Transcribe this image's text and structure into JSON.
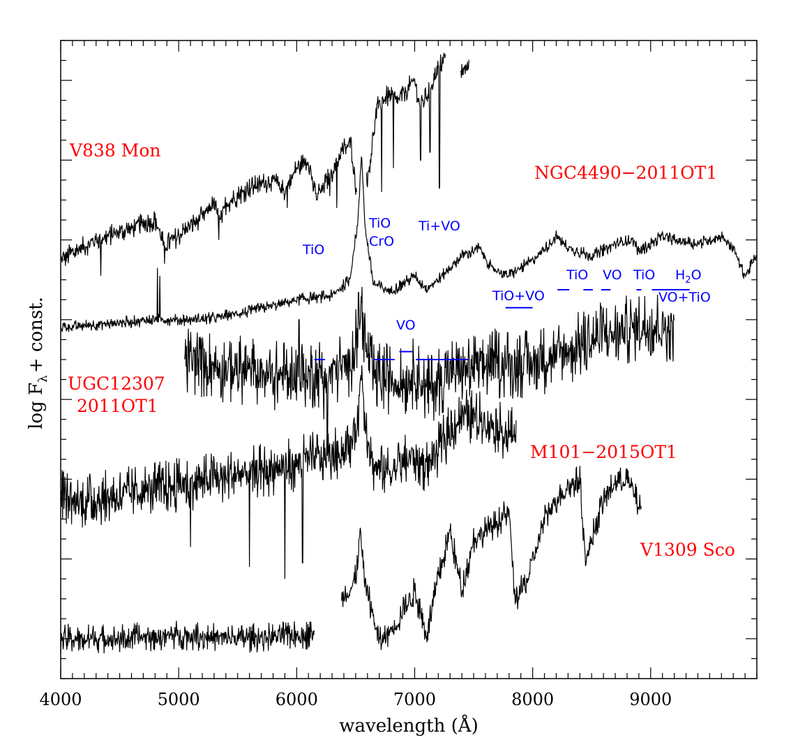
{
  "chart_data": {
    "type": "line",
    "xlabel": "wavelength (Å)",
    "ylabel": {
      "main": "log F",
      "sub": "λ",
      "rest": "+ const."
    },
    "xlim": [
      4000,
      9900
    ],
    "ylim": [
      0,
      16
    ],
    "x_ticks": [
      4000,
      5000,
      6000,
      7000,
      8000,
      9000
    ],
    "x_tick_labels": [
      "4000",
      "5000",
      "6000",
      "7000",
      "8000",
      "9000"
    ],
    "y_ticks_major": [
      1,
      3,
      5,
      7,
      9,
      11,
      13,
      15
    ],
    "grid": false,
    "colors": {
      "spectrum": "#000000",
      "object_label": "#ff0000",
      "band": "#0000ff"
    },
    "series": [
      {
        "name": "V838 Mon",
        "noise": 0.28,
        "points": [
          [
            4000,
            10.5
          ],
          [
            4300,
            11.0
          ],
          [
            4600,
            11.3
          ],
          [
            4800,
            11.5
          ],
          [
            4840,
            11.2
          ],
          [
            4880,
            10.8
          ],
          [
            4900,
            10.9
          ],
          [
            5000,
            11.1
          ],
          [
            5200,
            11.6
          ],
          [
            5300,
            11.9
          ],
          [
            5350,
            11.4
          ],
          [
            5400,
            11.9
          ],
          [
            5600,
            12.3
          ],
          [
            5800,
            12.5
          ],
          [
            5900,
            12.2
          ],
          [
            6000,
            12.8
          ],
          [
            6100,
            13.0
          ],
          [
            6150,
            12.2
          ],
          [
            6200,
            12.2
          ],
          [
            6300,
            12.7
          ],
          [
            6400,
            13.3
          ],
          [
            6460,
            13.4
          ],
          [
            6520,
            11.8
          ],
          [
            6560,
            14.0
          ],
          [
            6600,
            12.5
          ],
          [
            6680,
            14.3
          ],
          [
            6760,
            14.6
          ],
          [
            6860,
            14.5
          ],
          [
            6940,
            14.8
          ],
          [
            7000,
            15.0
          ],
          [
            7050,
            14.3
          ],
          [
            7100,
            14.6
          ],
          [
            7200,
            15.3
          ],
          [
            7260,
            15.6
          ],
          [
            7320,
            15.9
          ],
          [
            7380,
            15.1
          ],
          [
            7400,
            15.2
          ],
          [
            7460,
            15.4
          ]
        ],
        "gaps": [
          [
            6510,
            6590
          ],
          [
            7260,
            7390
          ]
        ],
        "drops": [
          [
            4340,
            10.1
          ],
          [
            4880,
            10.4
          ],
          [
            5340,
            11.0
          ],
          [
            5920,
            11.8
          ],
          [
            6170,
            12.0
          ],
          [
            6280,
            12.1
          ],
          [
            6340,
            11.8
          ],
          [
            6720,
            12.2
          ],
          [
            6820,
            12.8
          ],
          [
            7050,
            13.0
          ],
          [
            7130,
            13.2
          ],
          [
            7210,
            12.3
          ]
        ]
      },
      {
        "name": "NGC4490-2011OT1",
        "noise": 0.16,
        "points": [
          [
            4000,
            8.8
          ],
          [
            4400,
            8.9
          ],
          [
            4800,
            9.0
          ],
          [
            5200,
            9.0
          ],
          [
            5600,
            9.2
          ],
          [
            6000,
            9.5
          ],
          [
            6300,
            9.6
          ],
          [
            6450,
            10.0
          ],
          [
            6520,
            11.5
          ],
          [
            6550,
            13.2
          ],
          [
            6580,
            11.3
          ],
          [
            6650,
            9.9
          ],
          [
            6800,
            9.7
          ],
          [
            6900,
            9.9
          ],
          [
            7000,
            10.1
          ],
          [
            7050,
            9.9
          ],
          [
            7100,
            9.8
          ],
          [
            7200,
            10.0
          ],
          [
            7400,
            10.6
          ],
          [
            7550,
            10.8
          ],
          [
            7650,
            10.3
          ],
          [
            7800,
            10.1
          ],
          [
            8000,
            10.5
          ],
          [
            8150,
            10.9
          ],
          [
            8200,
            11.1
          ],
          [
            8300,
            10.8
          ],
          [
            8400,
            10.7
          ],
          [
            8500,
            10.6
          ],
          [
            8700,
            10.9
          ],
          [
            8850,
            11.0
          ],
          [
            8900,
            10.7
          ],
          [
            9000,
            10.9
          ],
          [
            9100,
            11.1
          ],
          [
            9200,
            11.0
          ],
          [
            9400,
            10.9
          ],
          [
            9600,
            11.1
          ],
          [
            9700,
            10.8
          ],
          [
            9800,
            10.1
          ],
          [
            9900,
            10.6
          ]
        ],
        "drops": [
          [
            4820,
            10.3
          ],
          [
            4840,
            10.1
          ]
        ]
      },
      {
        "name": "UGC12307 2011OT1",
        "noise": 0.9,
        "points": [
          [
            5050,
            8.0
          ],
          [
            5400,
            7.8
          ],
          [
            5800,
            7.6
          ],
          [
            6000,
            7.6
          ],
          [
            6300,
            7.7
          ],
          [
            6450,
            7.9
          ],
          [
            6510,
            8.6
          ],
          [
            6550,
            9.3
          ],
          [
            6590,
            8.2
          ],
          [
            6650,
            7.6
          ],
          [
            6800,
            7.5
          ],
          [
            6900,
            7.4
          ],
          [
            7000,
            7.7
          ],
          [
            7100,
            7.2
          ],
          [
            7300,
            7.7
          ],
          [
            7500,
            7.8
          ],
          [
            7700,
            7.9
          ],
          [
            8000,
            7.9
          ],
          [
            8300,
            8.2
          ],
          [
            8600,
            8.6
          ],
          [
            9000,
            8.9
          ],
          [
            9200,
            8.8
          ]
        ],
        "clip": [
          5050,
          9200
        ],
        "drops": [
          [
            6020,
            9.0
          ],
          [
            6230,
            6.5
          ],
          [
            6260,
            5.8
          ]
        ]
      },
      {
        "name": "M101-2015OT1",
        "noise": 0.7,
        "points": [
          [
            4000,
            4.7
          ],
          [
            4100,
            4.4
          ],
          [
            4300,
            4.5
          ],
          [
            4500,
            4.6
          ],
          [
            4700,
            4.7
          ],
          [
            4900,
            4.8
          ],
          [
            5100,
            4.9
          ],
          [
            5300,
            5.0
          ],
          [
            5500,
            5.1
          ],
          [
            5700,
            5.2
          ],
          [
            5900,
            5.3
          ],
          [
            6100,
            5.5
          ],
          [
            6300,
            5.6
          ],
          [
            6450,
            5.8
          ],
          [
            6520,
            6.6
          ],
          [
            6550,
            7.8
          ],
          [
            6580,
            6.5
          ],
          [
            6650,
            5.3
          ],
          [
            6800,
            5.2
          ],
          [
            6900,
            5.4
          ],
          [
            7000,
            5.6
          ],
          [
            7100,
            5.3
          ],
          [
            7300,
            6.2
          ],
          [
            7400,
            6.6
          ],
          [
            7600,
            6.5
          ],
          [
            7700,
            6.3
          ],
          [
            7800,
            6.1
          ],
          [
            7860,
            6.2
          ]
        ],
        "drops": [
          [
            5100,
            3.3
          ],
          [
            5600,
            2.8
          ],
          [
            5900,
            2.5
          ],
          [
            6050,
            2.9
          ]
        ]
      },
      {
        "name": "V1309 Sco",
        "noise": 0.38,
        "points": [
          [
            4000,
            1.0
          ],
          [
            4500,
            1.0
          ],
          [
            5000,
            1.1
          ],
          [
            5500,
            1.0
          ],
          [
            6000,
            1.1
          ],
          [
            6150,
            1.1
          ],
          [
            6350,
            2.0
          ],
          [
            6450,
            2.2
          ],
          [
            6500,
            2.5
          ],
          [
            6540,
            3.7
          ],
          [
            6570,
            2.5
          ],
          [
            6600,
            2.2
          ],
          [
            6700,
            0.9
          ],
          [
            6850,
            1.4
          ],
          [
            7000,
            2.2
          ],
          [
            7100,
            1.1
          ],
          [
            7200,
            2.5
          ],
          [
            7300,
            3.7
          ],
          [
            7400,
            2.2
          ],
          [
            7500,
            3.5
          ],
          [
            7700,
            3.9
          ],
          [
            7800,
            4.2
          ],
          [
            7850,
            2.0
          ],
          [
            7950,
            2.4
          ],
          [
            8100,
            4.0
          ],
          [
            8200,
            4.5
          ],
          [
            8300,
            4.8
          ],
          [
            8400,
            5.0
          ],
          [
            8450,
            2.9
          ],
          [
            8500,
            3.5
          ],
          [
            8600,
            4.5
          ],
          [
            8700,
            4.9
          ],
          [
            8800,
            5.0
          ],
          [
            8860,
            4.6
          ],
          [
            8920,
            4.2
          ]
        ],
        "gaps": [
          [
            6150,
            6380
          ]
        ]
      }
    ],
    "object_labels": [
      "V838 Mon",
      "NGC4490−2011OT1",
      "UGC12307",
      "2011OT1",
      "M101−2015OT1",
      "V1309 Sco"
    ],
    "band_labels": [
      "TiO",
      "TiO",
      "CrO",
      "Ti+VO",
      "VO",
      "TiO+VO",
      "TiO",
      "VO",
      "TiO",
      "H",
      "2",
      "O",
      "VO+TiO"
    ],
    "band_segments": [
      {
        "x": [
          6150,
          6240
        ],
        "y": 8.0
      },
      {
        "x": [
          6650,
          6830
        ],
        "y": 8.0
      },
      {
        "x": [
          6870,
          6980
        ],
        "y": 8.2
      },
      {
        "x": [
          7010,
          7450
        ],
        "y": 8.0
      },
      {
        "x": [
          7770,
          8000
        ],
        "y": 9.3
      },
      {
        "x": [
          8210,
          8310
        ],
        "y": 9.75
      },
      {
        "x": [
          8430,
          8510
        ],
        "y": 9.75
      },
      {
        "x": [
          8580,
          8660
        ],
        "y": 9.75
      },
      {
        "x": [
          8880,
          8920
        ],
        "y": 9.75
      },
      {
        "x": [
          9010,
          9330
        ],
        "y": 9.75
      }
    ]
  }
}
